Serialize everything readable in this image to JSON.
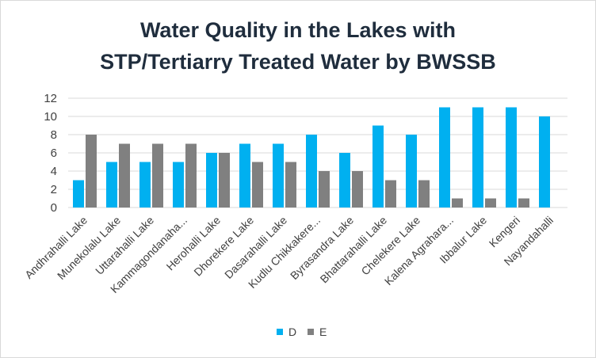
{
  "chart_data": {
    "type": "bar",
    "title_line1": "Water Quality in the Lakes with",
    "title_line2": "STP/Tertiarry Treated Water by BWSSB",
    "categories": [
      "Andhrahalli Lake",
      "Munekolalu Lake",
      "Uttarahalli Lake",
      "Kammagondanaha...",
      "Herohalli Lake",
      "Dhorekere Lake",
      "Dasarahalli Lake",
      "Kudlu Chikkakere...",
      "Byrasandra Lake",
      "Bhattarahalli Lake",
      "Chelekere Lake",
      "Kalena Agrahara...",
      "Ibbalur Lake",
      "Kengeri",
      "Nayandahalli"
    ],
    "series": [
      {
        "name": "D",
        "color": "#00b0f0",
        "values": [
          3,
          5,
          5,
          5,
          6,
          7,
          7,
          8,
          6,
          9,
          8,
          11,
          11,
          11,
          10
        ]
      },
      {
        "name": "E",
        "color": "#808080",
        "values": [
          8,
          7,
          7,
          7,
          6,
          5,
          5,
          4,
          4,
          3,
          3,
          1,
          1,
          1,
          null
        ]
      }
    ],
    "ylim": [
      0,
      12
    ],
    "yticks": [
      0,
      2,
      4,
      6,
      8,
      10,
      12
    ],
    "xlabel": "",
    "ylabel": "",
    "legend": "bottom",
    "grid": true
  }
}
